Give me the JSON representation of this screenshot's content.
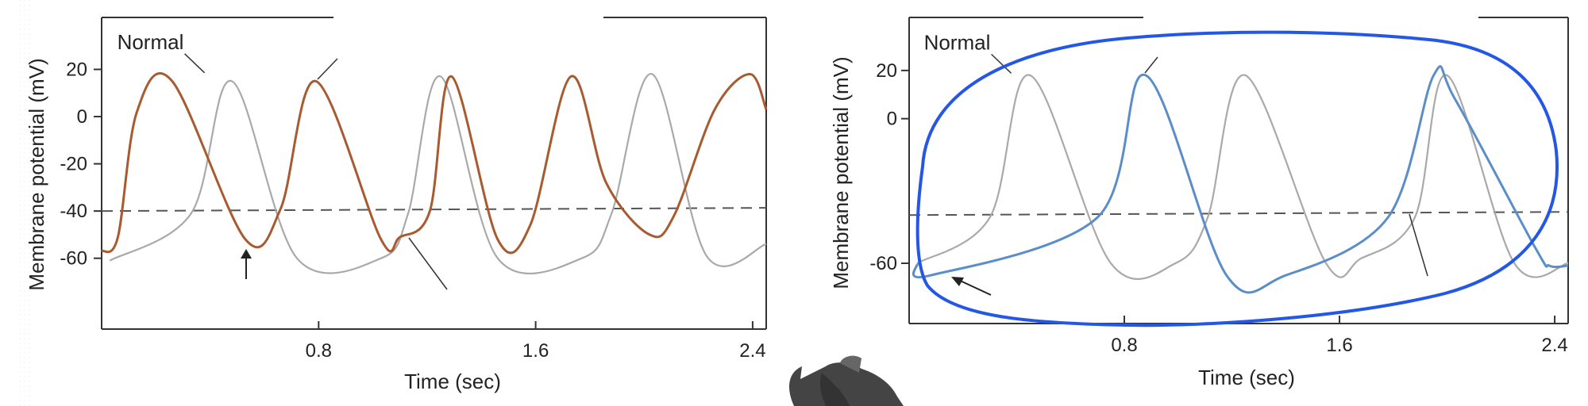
{
  "chart_data": [
    {
      "type": "line",
      "title": "",
      "xlabel": "Time (sec)",
      "ylabel": "Membrane potential (mV)",
      "xlim": [
        0,
        2.45
      ],
      "ylim": [
        -90,
        42
      ],
      "x_ticks": [
        "0.8",
        "1.6",
        "2.4"
      ],
      "x_tick_values": [
        0.8,
        1.6,
        2.4
      ],
      "y_ticks": [
        "20",
        "0",
        "-20",
        "-40",
        "-60"
      ],
      "y_tick_values": [
        20,
        0,
        -20,
        -40,
        -60
      ],
      "threshold": -40,
      "annotations": [
        {
          "text": "Normal",
          "x": 0.35,
          "y": 32
        }
      ],
      "series": [
        {
          "name": "Normal",
          "color": "#a9a9a9",
          "x": [
            0.03,
            0.33,
            0.48,
            0.72,
            1.03,
            1.13,
            1.25,
            1.46,
            1.77,
            1.88,
            2.03,
            2.23,
            2.45
          ],
          "y": [
            -61,
            -41,
            15,
            -60,
            -60,
            -41,
            17,
            -60,
            -60,
            -41,
            18,
            -59,
            -54
          ],
          "style": "gray"
        },
        {
          "name": "",
          "color": "#a85a30",
          "x": [
            0.0,
            0.06,
            0.13,
            0.26,
            0.53,
            0.66,
            0.79,
            1.03,
            1.1,
            1.21,
            1.29,
            1.46,
            1.58,
            1.73,
            1.86,
            2.02,
            2.11,
            2.26,
            2.39,
            2.45
          ],
          "y": [
            -57,
            -51,
            2,
            15,
            -52,
            -39,
            15,
            -52,
            -51,
            -40,
            17,
            -52,
            -46,
            17,
            -28,
            -50,
            -42,
            3,
            18,
            3
          ]
        }
      ]
    },
    {
      "type": "line",
      "title": "",
      "xlabel": "Time (sec)",
      "ylabel": "Membrane potential (mV)",
      "xlim": [
        0,
        2.45
      ],
      "ylim": [
        -85,
        42
      ],
      "x_ticks": [
        "0.8",
        "1.6",
        "2.4"
      ],
      "x_tick_values": [
        0.8,
        1.6,
        2.4
      ],
      "y_ticks": [
        "20",
        "0",
        "-60"
      ],
      "y_tick_values": [
        20,
        0,
        -60
      ],
      "threshold": -40,
      "annotations": [
        {
          "text": "Normal",
          "x": 0.35,
          "y": 32
        }
      ],
      "series": [
        {
          "name": "Normal",
          "color": "#a9a9a9",
          "x": [
            0.03,
            0.3,
            0.45,
            0.75,
            0.99,
            1.11,
            1.25,
            1.55,
            1.68,
            1.88,
            2.0,
            2.25,
            2.45
          ],
          "y": [
            -60,
            -41,
            18,
            -60,
            -60,
            -41,
            18,
            -60,
            -58,
            -41,
            18,
            -60,
            -60
          ],
          "style": "gray"
        },
        {
          "name": "",
          "color": "#5b8ec9",
          "x": [
            0.03,
            0.08,
            0.7,
            0.88,
            1.18,
            1.4,
            1.78,
            1.95,
            2.03,
            2.33,
            2.38,
            2.45
          ],
          "y": [
            -60,
            -65,
            -41,
            18,
            -65,
            -65,
            -41,
            18,
            8,
            -54,
            -61,
            -61
          ]
        }
      ]
    }
  ]
}
